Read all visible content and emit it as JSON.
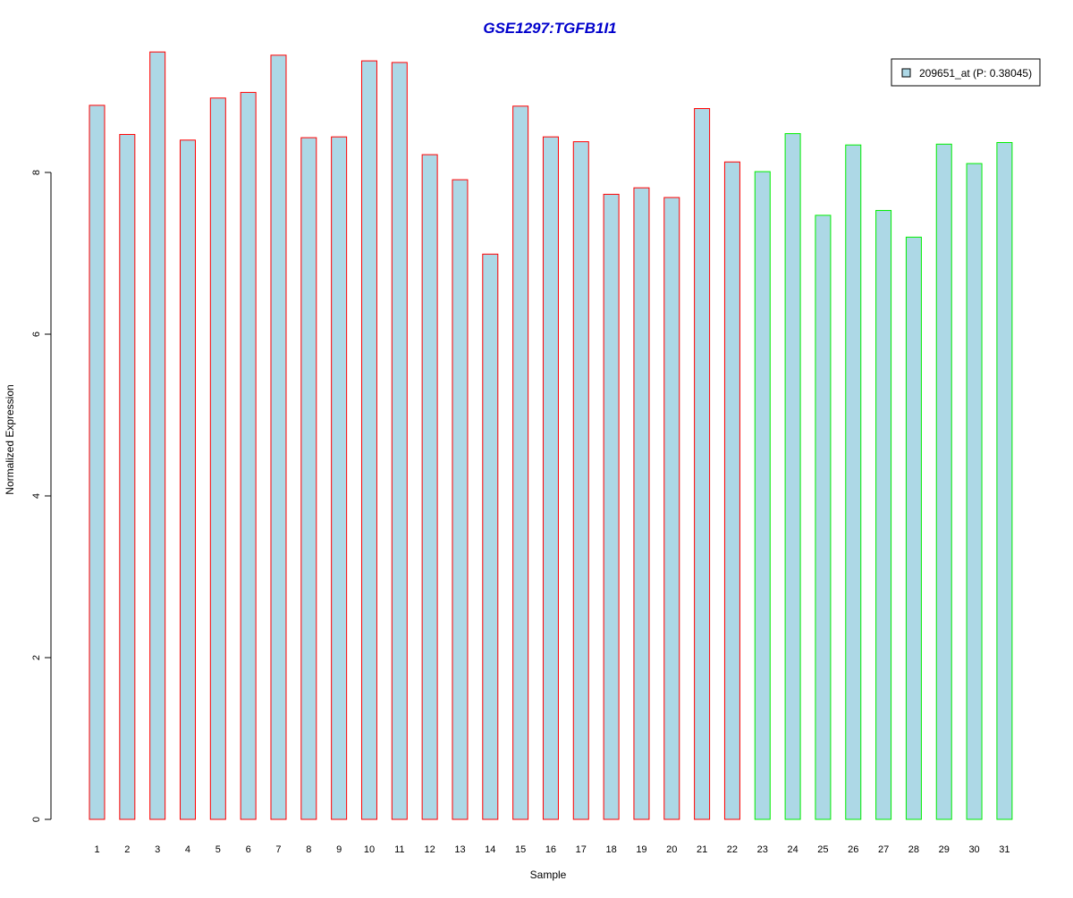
{
  "chart_data": {
    "type": "bar",
    "title": "GSE1297:TGFB1I1",
    "xlabel": "Sample",
    "ylabel": "Normalized Expression",
    "categories": [
      "1",
      "2",
      "3",
      "4",
      "5",
      "6",
      "7",
      "8",
      "9",
      "10",
      "11",
      "12",
      "13",
      "14",
      "15",
      "16",
      "17",
      "18",
      "19",
      "20",
      "21",
      "22",
      "23",
      "24",
      "25",
      "26",
      "27",
      "28",
      "29",
      "30",
      "31"
    ],
    "series": [
      {
        "name": "209651_at (P: 0.38045)",
        "values": [
          8.83,
          8.47,
          9.49,
          8.4,
          8.92,
          8.99,
          9.45,
          8.43,
          8.44,
          9.38,
          9.36,
          8.22,
          7.91,
          6.99,
          8.82,
          8.44,
          8.38,
          7.73,
          7.81,
          7.69,
          8.79,
          8.13,
          8.01,
          8.48,
          7.47,
          8.34,
          7.53,
          7.2,
          8.35,
          8.11,
          8.37
        ]
      }
    ],
    "groups": [
      {
        "samples": "1-22",
        "border_color": "#ff0000"
      },
      {
        "samples": "23-31",
        "border_color": "#00ee00"
      }
    ],
    "fill_color": "#add8e6",
    "title_color": "#0000cc",
    "ylim": [
      0,
      9.6
    ],
    "yticks": [
      0,
      2,
      4,
      6,
      8
    ],
    "grid": false,
    "legend_position": "top-right"
  }
}
